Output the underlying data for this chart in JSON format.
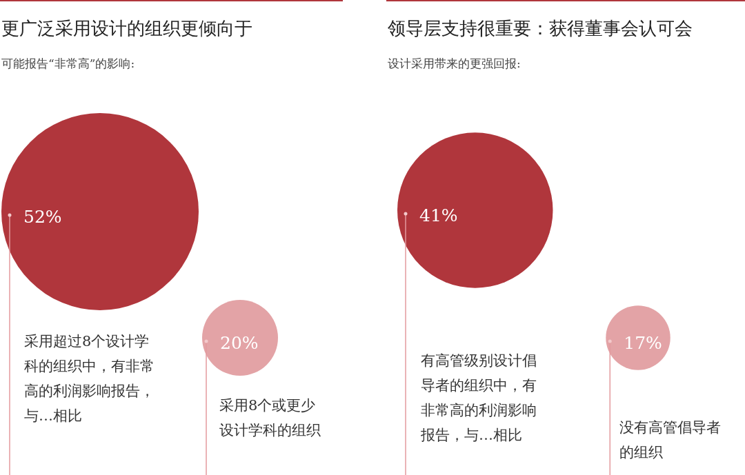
{
  "chart_data": [
    {
      "type": "other",
      "title": "更广泛采用设计的组织更倾向于",
      "subtitle": "可能报告“非常高”的影响:",
      "categories": [
        "采用超过8个设计学科的组织中，有非常高的利润影响报告，与…相比",
        "采用8个或更少设计学科的组织"
      ],
      "values": [
        52,
        20
      ],
      "value_labels": [
        "52%",
        "20%"
      ],
      "colors": [
        "#b0363c",
        "#e3a3a6"
      ]
    },
    {
      "type": "other",
      "title": "领导层支持很重要：获得董事会认可会",
      "subtitle": "设计采用带来的更强回报:",
      "categories": [
        "有高管级别设计倡导者的组织中，有非常高的利润影响报告，与…相比",
        "没有高管倡导者的组织"
      ],
      "values": [
        41,
        17
      ],
      "value_labels": [
        "41%",
        "17%"
      ],
      "colors": [
        "#b0363c",
        "#e3a3a6"
      ]
    }
  ]
}
